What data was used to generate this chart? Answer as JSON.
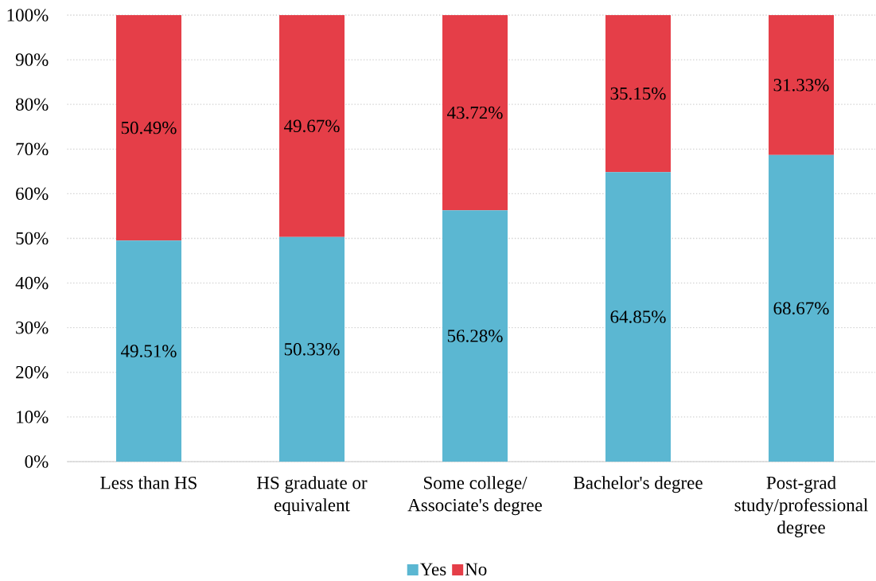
{
  "chart_data": {
    "type": "bar",
    "stacked": true,
    "categories": [
      "Less than HS",
      "HS graduate or equivalent",
      "Some college/Associate's degree",
      "Bachelor's degree",
      "Post-grad study/professional degree"
    ],
    "series": [
      {
        "name": "Yes",
        "color": "#5bb7d2",
        "values": [
          49.51,
          50.33,
          56.28,
          64.85,
          68.67
        ],
        "value_labels": [
          "49.51%",
          "50.33%",
          "56.28%",
          "64.85%",
          "68.67%"
        ]
      },
      {
        "name": "No",
        "color": "#e53e48",
        "values": [
          50.49,
          49.67,
          43.72,
          35.15,
          31.33
        ],
        "value_labels": [
          "50.49%",
          "49.67%",
          "43.72%",
          "35.15%",
          "31.33%"
        ]
      }
    ],
    "ylim": [
      0,
      100
    ],
    "yticks": [
      {
        "value": 0,
        "label": "0%"
      },
      {
        "value": 10,
        "label": "10%"
      },
      {
        "value": 20,
        "label": "20%"
      },
      {
        "value": 30,
        "label": "30%"
      },
      {
        "value": 40,
        "label": "40%"
      },
      {
        "value": 50,
        "label": "50%"
      },
      {
        "value": 60,
        "label": "60%"
      },
      {
        "value": 70,
        "label": "70%"
      },
      {
        "value": 80,
        "label": "80%"
      },
      {
        "value": 90,
        "label": "90%"
      },
      {
        "value": 100,
        "label": "100%"
      }
    ],
    "grid": "y",
    "legend": "bottom"
  }
}
